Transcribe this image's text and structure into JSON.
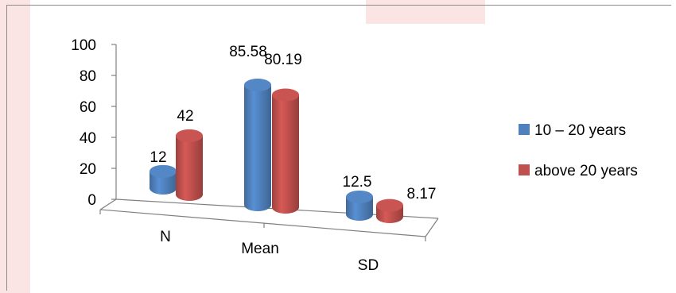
{
  "colors": {
    "series_blue": "#4f81bd",
    "series_red": "#c0504d",
    "axis": "#808080",
    "watermark": "#fbe4e4"
  },
  "chart_data": {
    "type": "bar",
    "style": "3d-cylinder",
    "categories": [
      "N",
      "Mean",
      "SD"
    ],
    "series": [
      {
        "name": "10 – 20 years",
        "values": [
          12,
          85.58,
          12.5
        ],
        "labels": [
          "12",
          "85.58",
          "12.5"
        ],
        "color": "#4f81bd"
      },
      {
        "name": "above 20 years",
        "values": [
          42,
          80.19,
          8.17
        ],
        "labels": [
          "42",
          "80.19",
          "8.17"
        ],
        "color": "#c0504d"
      }
    ],
    "yticks": [
      "0",
      "20",
      "40",
      "60",
      "80",
      "100"
    ],
    "ylim": [
      0,
      100
    ],
    "grid": false,
    "legend_position": "right"
  }
}
